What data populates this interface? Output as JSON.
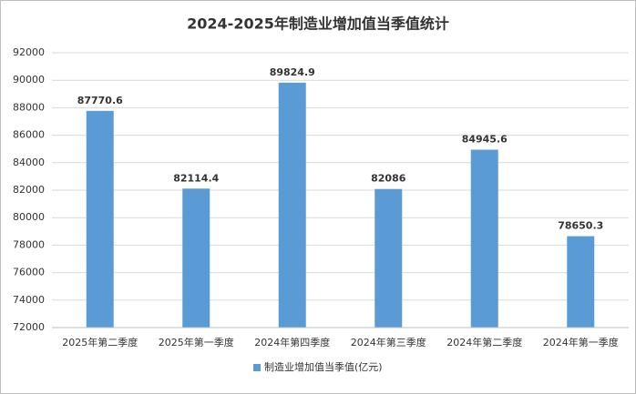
{
  "chart_data": {
    "type": "bar",
    "title": "2024-2025年制造业增加值当季值统计",
    "categories": [
      "2025年第二季度",
      "2025年第一季度",
      "2024年第四季度",
      "2024年第三季度",
      "2024年第二季度",
      "2024年第一季度"
    ],
    "series": [
      {
        "name": "制造业增加值当季值(亿元)",
        "color": "#5b9bd5",
        "values": [
          87770.6,
          82114.4,
          89824.9,
          82086,
          84945.6,
          78650.3
        ]
      }
    ],
    "ylim": [
      72000,
      92000
    ],
    "yticks": [
      72000,
      74000,
      76000,
      78000,
      80000,
      82000,
      84000,
      86000,
      88000,
      90000,
      92000
    ],
    "grid": true,
    "legend": "bottom"
  }
}
